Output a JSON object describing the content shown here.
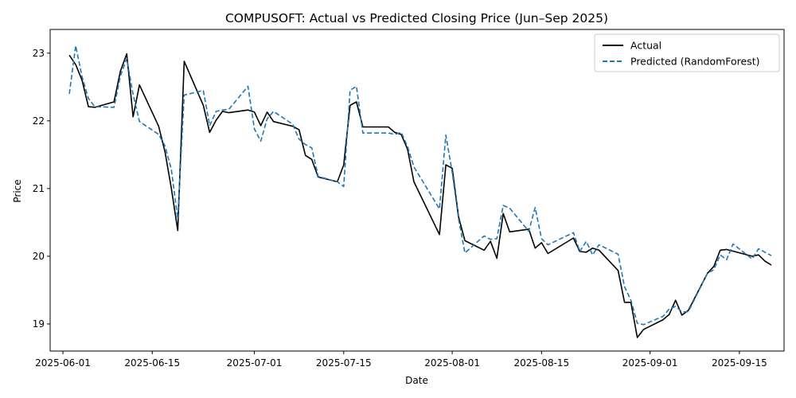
{
  "chart_data": {
    "type": "line",
    "title": "COMPUSOFT: Actual vs Predicted Closing Price (Jun–Sep 2025)",
    "xlabel": "Date",
    "ylabel": "Price",
    "xlim": [
      "2025-05-30",
      "2025-09-22"
    ],
    "ylim": [
      18.6,
      23.35
    ],
    "x_ticks": [
      "2025-06-01",
      "2025-06-15",
      "2025-07-01",
      "2025-07-15",
      "2025-08-01",
      "2025-08-15",
      "2025-09-01",
      "2025-09-15"
    ],
    "y_ticks": [
      19,
      20,
      21,
      22,
      23
    ],
    "grid": false,
    "legend_position": "upper-right",
    "series": [
      {
        "name": "Actual",
        "color": "#000000",
        "style": "solid",
        "points": [
          [
            "2025-06-02",
            22.97
          ],
          [
            "2025-06-03",
            22.83
          ],
          [
            "2025-06-04",
            22.6
          ],
          [
            "2025-06-05",
            22.21
          ],
          [
            "2025-06-06",
            22.2
          ],
          [
            "2025-06-09",
            22.28
          ],
          [
            "2025-06-10",
            22.73
          ],
          [
            "2025-06-11",
            22.99
          ],
          [
            "2025-06-12",
            22.06
          ],
          [
            "2025-06-13",
            22.53
          ],
          [
            "2025-06-16",
            21.92
          ],
          [
            "2025-06-17",
            21.54
          ],
          [
            "2025-06-18",
            21.0
          ],
          [
            "2025-06-19",
            20.38
          ],
          [
            "2025-06-20",
            22.88
          ],
          [
            "2025-06-23",
            22.23
          ],
          [
            "2025-06-24",
            21.83
          ],
          [
            "2025-06-25",
            22.01
          ],
          [
            "2025-06-26",
            22.14
          ],
          [
            "2025-06-27",
            22.12
          ],
          [
            "2025-06-30",
            22.16
          ],
          [
            "2025-07-01",
            22.13
          ],
          [
            "2025-07-02",
            21.93
          ],
          [
            "2025-07-03",
            22.13
          ],
          [
            "2025-07-04",
            21.99
          ],
          [
            "2025-07-07",
            21.92
          ],
          [
            "2025-07-08",
            21.87
          ],
          [
            "2025-07-09",
            21.49
          ],
          [
            "2025-07-10",
            21.43
          ],
          [
            "2025-07-11",
            21.17
          ],
          [
            "2025-07-14",
            21.1
          ],
          [
            "2025-07-15",
            21.35
          ],
          [
            "2025-07-16",
            22.23
          ],
          [
            "2025-07-17",
            22.28
          ],
          [
            "2025-07-18",
            21.91
          ],
          [
            "2025-07-22",
            21.91
          ],
          [
            "2025-07-23",
            21.83
          ],
          [
            "2025-07-24",
            21.8
          ],
          [
            "2025-07-25",
            21.58
          ],
          [
            "2025-07-26",
            21.1
          ],
          [
            "2025-07-30",
            20.32
          ],
          [
            "2025-07-31",
            21.35
          ],
          [
            "2025-08-01",
            21.3
          ],
          [
            "2025-08-02",
            20.58
          ],
          [
            "2025-08-03",
            20.23
          ],
          [
            "2025-08-06",
            20.09
          ],
          [
            "2025-08-07",
            20.22
          ],
          [
            "2025-08-08",
            19.97
          ],
          [
            "2025-08-09",
            20.63
          ],
          [
            "2025-08-10",
            20.36
          ],
          [
            "2025-08-13",
            20.4
          ],
          [
            "2025-08-14",
            20.12
          ],
          [
            "2025-08-15",
            20.2
          ],
          [
            "2025-08-16",
            20.04
          ],
          [
            "2025-08-20",
            20.27
          ],
          [
            "2025-08-21",
            20.07
          ],
          [
            "2025-08-22",
            20.06
          ],
          [
            "2025-08-23",
            20.12
          ],
          [
            "2025-08-24",
            20.09
          ],
          [
            "2025-08-27",
            19.79
          ],
          [
            "2025-08-28",
            19.32
          ],
          [
            "2025-08-29",
            19.32
          ],
          [
            "2025-08-30",
            18.8
          ],
          [
            "2025-08-31",
            18.92
          ],
          [
            "2025-09-03",
            19.06
          ],
          [
            "2025-09-04",
            19.14
          ],
          [
            "2025-09-05",
            19.35
          ],
          [
            "2025-09-06",
            19.13
          ],
          [
            "2025-09-07",
            19.2
          ],
          [
            "2025-09-10",
            19.75
          ],
          [
            "2025-09-11",
            19.85
          ],
          [
            "2025-09-12",
            20.09
          ],
          [
            "2025-09-13",
            20.1
          ],
          [
            "2025-09-17",
            20.0
          ],
          [
            "2025-09-18",
            20.02
          ],
          [
            "2025-09-19",
            19.93
          ],
          [
            "2025-09-20",
            19.87
          ]
        ]
      },
      {
        "name": "Predicted (RandomForest)",
        "color": "#1f77b4",
        "style": "dashed",
        "points": [
          [
            "2025-06-02",
            22.4
          ],
          [
            "2025-06-03",
            23.11
          ],
          [
            "2025-06-04",
            22.65
          ],
          [
            "2025-06-05",
            22.33
          ],
          [
            "2025-06-06",
            22.21
          ],
          [
            "2025-06-09",
            22.2
          ],
          [
            "2025-06-10",
            22.66
          ],
          [
            "2025-06-11",
            22.92
          ],
          [
            "2025-06-12",
            22.39
          ],
          [
            "2025-06-13",
            21.99
          ],
          [
            "2025-06-16",
            21.8
          ],
          [
            "2025-06-17",
            21.63
          ],
          [
            "2025-06-18",
            21.28
          ],
          [
            "2025-06-19",
            20.55
          ],
          [
            "2025-06-20",
            22.38
          ],
          [
            "2025-06-23",
            22.45
          ],
          [
            "2025-06-24",
            21.93
          ],
          [
            "2025-06-25",
            22.14
          ],
          [
            "2025-06-26",
            22.16
          ],
          [
            "2025-06-27",
            22.17
          ],
          [
            "2025-06-30",
            22.51
          ],
          [
            "2025-07-01",
            21.88
          ],
          [
            "2025-07-02",
            21.7
          ],
          [
            "2025-07-03",
            22.03
          ],
          [
            "2025-07-04",
            22.14
          ],
          [
            "2025-07-07",
            21.95
          ],
          [
            "2025-07-08",
            21.73
          ],
          [
            "2025-07-09",
            21.65
          ],
          [
            "2025-07-10",
            21.6
          ],
          [
            "2025-07-11",
            21.18
          ],
          [
            "2025-07-14",
            21.1
          ],
          [
            "2025-07-15",
            21.03
          ],
          [
            "2025-07-16",
            22.45
          ],
          [
            "2025-07-17",
            22.51
          ],
          [
            "2025-07-18",
            21.82
          ],
          [
            "2025-07-22",
            21.82
          ],
          [
            "2025-07-23",
            21.8
          ],
          [
            "2025-07-24",
            21.83
          ],
          [
            "2025-07-25",
            21.62
          ],
          [
            "2025-07-26",
            21.32
          ],
          [
            "2025-07-30",
            20.7
          ],
          [
            "2025-07-31",
            21.79
          ],
          [
            "2025-08-01",
            21.24
          ],
          [
            "2025-08-02",
            20.55
          ],
          [
            "2025-08-03",
            20.05
          ],
          [
            "2025-08-06",
            20.3
          ],
          [
            "2025-08-07",
            20.25
          ],
          [
            "2025-08-08",
            20.26
          ],
          [
            "2025-08-09",
            20.75
          ],
          [
            "2025-08-10",
            20.71
          ],
          [
            "2025-08-13",
            20.37
          ],
          [
            "2025-08-14",
            20.72
          ],
          [
            "2025-08-15",
            20.26
          ],
          [
            "2025-08-16",
            20.17
          ],
          [
            "2025-08-20",
            20.35
          ],
          [
            "2025-08-21",
            20.07
          ],
          [
            "2025-08-22",
            20.22
          ],
          [
            "2025-08-23",
            20.02
          ],
          [
            "2025-08-24",
            20.17
          ],
          [
            "2025-08-27",
            20.03
          ],
          [
            "2025-08-28",
            19.55
          ],
          [
            "2025-08-29",
            19.35
          ],
          [
            "2025-08-30",
            19.01
          ],
          [
            "2025-08-31",
            18.99
          ],
          [
            "2025-09-03",
            19.11
          ],
          [
            "2025-09-04",
            19.22
          ],
          [
            "2025-09-05",
            19.26
          ],
          [
            "2025-09-06",
            19.18
          ],
          [
            "2025-09-07",
            19.18
          ],
          [
            "2025-09-10",
            19.75
          ],
          [
            "2025-09-11",
            19.8
          ],
          [
            "2025-09-12",
            20.02
          ],
          [
            "2025-09-13",
            19.95
          ],
          [
            "2025-09-14",
            20.18
          ],
          [
            "2025-09-17",
            19.96
          ],
          [
            "2025-09-18",
            20.11
          ],
          [
            "2025-09-20",
            20.01
          ]
        ]
      }
    ]
  }
}
